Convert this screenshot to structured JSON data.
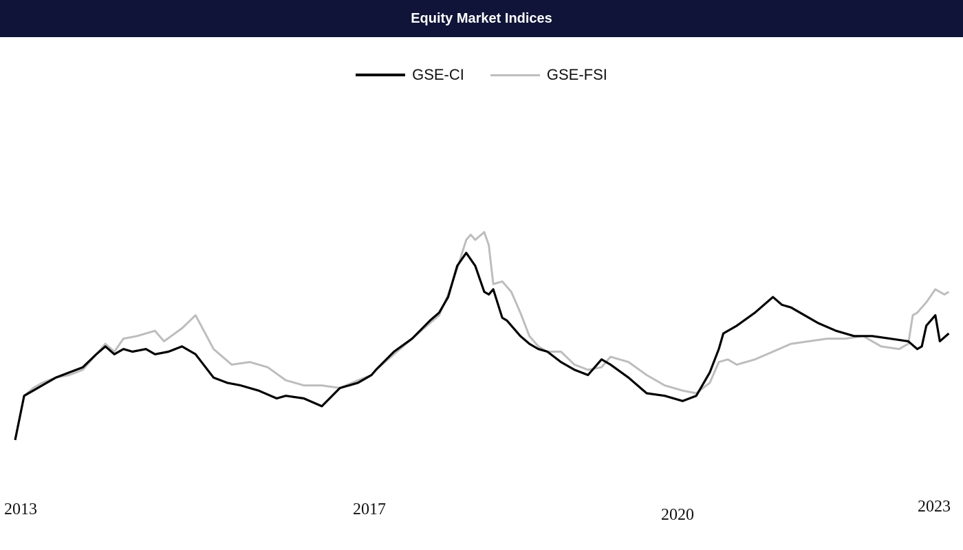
{
  "chart_data": {
    "type": "line",
    "title": "Equity Market Indices",
    "x_ticks": [
      "2013",
      "2017",
      "2020",
      "2023"
    ],
    "xlim": [
      2013.0,
      2023.4
    ],
    "ylim": [
      0,
      100
    ],
    "colors": {
      "GSE-CI": "#000000",
      "GSE-FSI": "#bdbdbd",
      "title_bar": "#0f1438"
    },
    "legend_position": "top-center",
    "grid": false,
    "y_axis_visible": false,
    "series": [
      {
        "name": "GSE-CI",
        "x": [
          2013.0,
          2013.1,
          2013.2,
          2013.3,
          2013.45,
          2013.6,
          2013.75,
          2013.9,
          2014.0,
          2014.1,
          2014.2,
          2014.3,
          2014.45,
          2014.55,
          2014.7,
          2014.85,
          2015.0,
          2015.2,
          2015.35,
          2015.5,
          2015.7,
          2015.9,
          2016.0,
          2016.2,
          2016.4,
          2016.6,
          2016.8,
          2016.95,
          2017.0,
          2017.2,
          2017.4,
          2017.6,
          2017.7,
          2017.8,
          2017.9,
          2018.0,
          2018.1,
          2018.2,
          2018.25,
          2018.3,
          2018.4,
          2018.45,
          2018.6,
          2018.7,
          2018.8,
          2018.9,
          2019.05,
          2019.2,
          2019.35,
          2019.5,
          2019.6,
          2019.8,
          2020.0,
          2020.2,
          2020.4,
          2020.55,
          2020.7,
          2020.8,
          2020.85,
          2021.0,
          2021.2,
          2021.4,
          2021.5,
          2021.6,
          2021.8,
          2021.9,
          2022.1,
          2022.3,
          2022.5,
          2022.7,
          2022.9,
          2023.0,
          2023.05,
          2023.1,
          2023.2,
          2023.25,
          2023.35
        ],
        "y": [
          0,
          17,
          19,
          21,
          24,
          26,
          28,
          33,
          36,
          33,
          35,
          34,
          35,
          33,
          34,
          36,
          33,
          24,
          22,
          21,
          19,
          16,
          17,
          16,
          13,
          20,
          22,
          25,
          27,
          34,
          39,
          46,
          49,
          55,
          67,
          72,
          67,
          57,
          56,
          58,
          47,
          46,
          40,
          37,
          35,
          34,
          30,
          27,
          25,
          31,
          29,
          24,
          18,
          17,
          15,
          17,
          26,
          35,
          41,
          44,
          49,
          55,
          52,
          51,
          47,
          45,
          42,
          40,
          40,
          39,
          38,
          35,
          36,
          44,
          48,
          38,
          41
        ]
      },
      {
        "name": "GSE-FSI",
        "x": [
          2013.0,
          2013.1,
          2013.2,
          2013.3,
          2013.45,
          2013.6,
          2013.75,
          2013.9,
          2014.0,
          2014.1,
          2014.2,
          2014.35,
          2014.55,
          2014.65,
          2014.85,
          2015.0,
          2015.2,
          2015.4,
          2015.6,
          2015.8,
          2016.0,
          2016.2,
          2016.4,
          2016.6,
          2016.8,
          2016.95,
          2017.0,
          2017.2,
          2017.4,
          2017.6,
          2017.7,
          2017.8,
          2017.9,
          2018.0,
          2018.05,
          2018.1,
          2018.2,
          2018.25,
          2018.3,
          2018.4,
          2018.5,
          2018.6,
          2018.7,
          2018.8,
          2018.9,
          2019.05,
          2019.2,
          2019.35,
          2019.5,
          2019.6,
          2019.8,
          2020.0,
          2020.2,
          2020.4,
          2020.55,
          2020.7,
          2020.8,
          2020.9,
          2021.0,
          2021.2,
          2021.4,
          2021.6,
          2021.8,
          2022.0,
          2022.2,
          2022.4,
          2022.6,
          2022.8,
          2022.9,
          2022.95,
          2023.0,
          2023.1,
          2023.2,
          2023.3,
          2023.35
        ],
        "y": [
          0,
          17,
          20,
          22,
          24,
          25,
          27,
          33,
          37,
          34,
          39,
          40,
          42,
          38,
          43,
          48,
          35,
          29,
          30,
          28,
          23,
          21,
          21,
          20,
          23,
          25,
          27,
          33,
          39,
          45,
          48,
          56,
          66,
          77,
          79,
          77,
          80,
          75,
          60,
          61,
          57,
          49,
          40,
          36,
          34,
          34,
          29,
          27,
          28,
          32,
          30,
          25,
          21,
          19,
          18,
          22,
          30,
          31,
          29,
          31,
          34,
          37,
          38,
          39,
          39,
          40,
          36,
          35,
          37,
          48,
          49,
          53,
          58,
          56,
          57
        ]
      }
    ]
  }
}
